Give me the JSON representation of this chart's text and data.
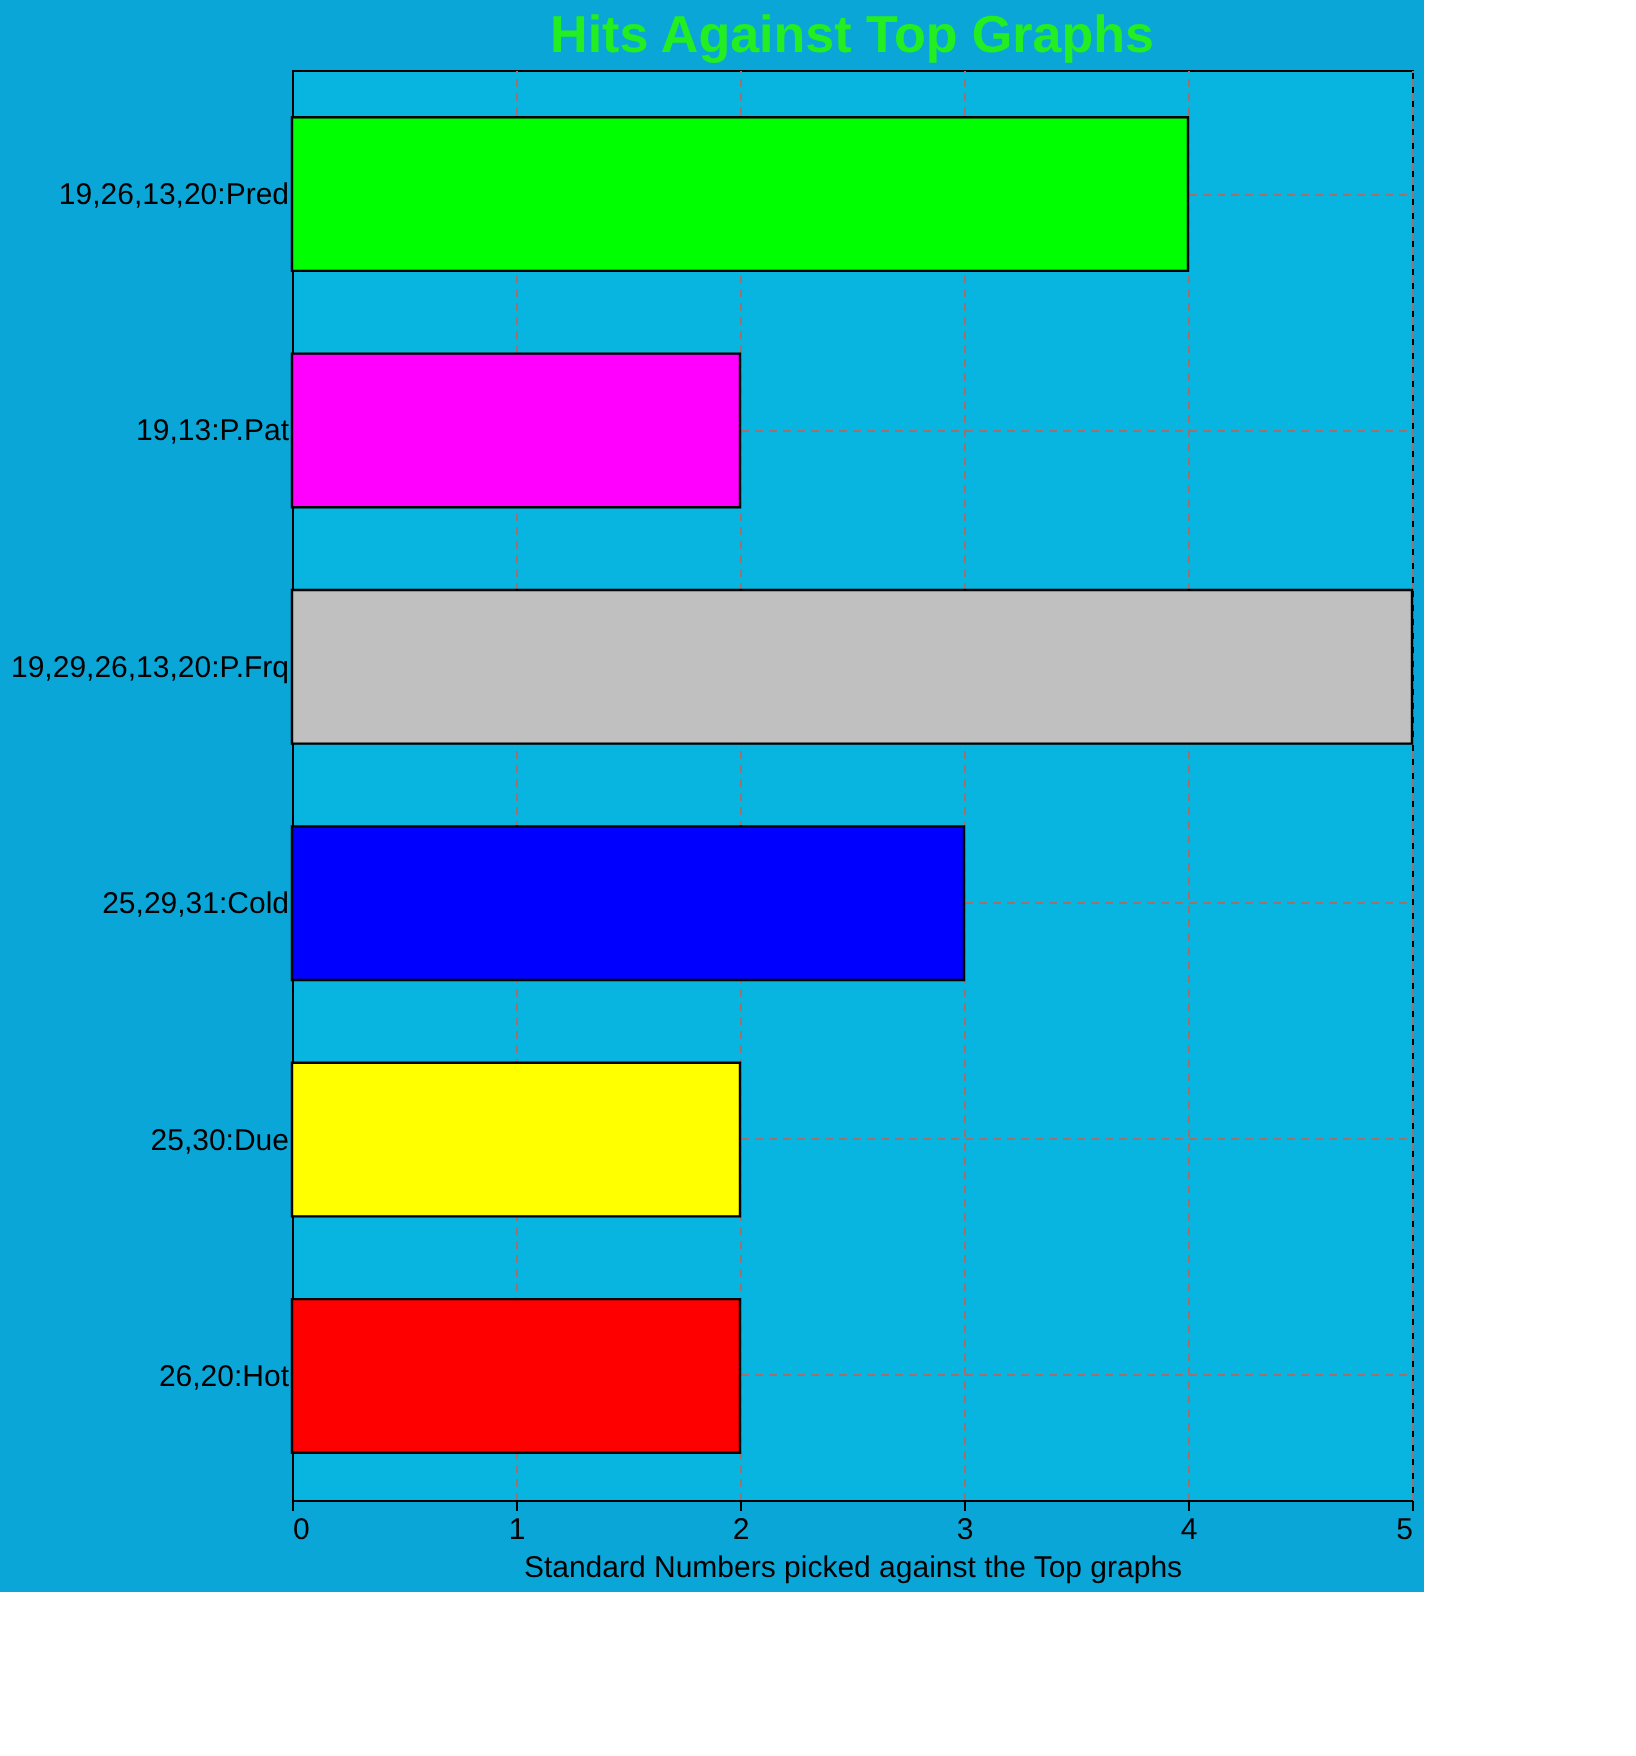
{
  "chart_data": {
    "type": "bar",
    "orientation": "horizontal",
    "title": "Hits Against Top Graphs",
    "xlabel": "Standard Numbers picked against the Top graphs",
    "categories": [
      "19,26,13,20:Pred",
      "19,13:P.Pat",
      "19,29,26,13,20:P.Frq",
      "25,29,31:Cold",
      "25,30:Due",
      "26,20:Hot"
    ],
    "values": [
      4,
      2,
      5,
      3,
      2,
      2
    ],
    "colors": [
      "#00ff00",
      "#ff00ff",
      "#c0c0c0",
      "#0000ff",
      "#ffff00",
      "#ff0000"
    ],
    "xlim": [
      0,
      5
    ],
    "xticks": [
      0,
      1,
      2,
      3,
      4,
      5
    ],
    "grid": true
  }
}
